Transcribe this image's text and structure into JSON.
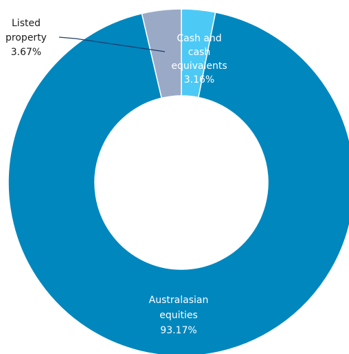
{
  "chart_data": {
    "type": "pie",
    "donut": true,
    "categories": [
      "Cash and cash equivalents",
      "Australasian equities",
      "Listed property"
    ],
    "values": [
      3.16,
      93.17,
      3.67
    ],
    "value_labels": [
      "3.16%",
      "93.17%",
      "3.67%"
    ],
    "colors": [
      "#4dc9f6",
      "#0087be",
      "#9aaac6"
    ],
    "labels": [
      {
        "lines": [
          "Cash and",
          "cash",
          "equivalents",
          "3.16%"
        ],
        "color": "#ffffff"
      },
      {
        "lines": [
          "Australasian",
          "equities",
          "93.17%"
        ],
        "color": "#ffffff"
      },
      {
        "lines": [
          "Listed",
          "property",
          "3.67%"
        ],
        "color": "#1a1a1a"
      }
    ],
    "leader_color": "#1f3a6b",
    "title": "",
    "legend": "none"
  }
}
